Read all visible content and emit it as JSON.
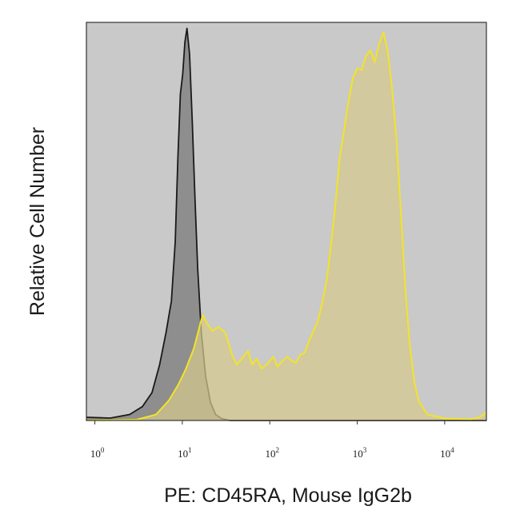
{
  "chart_data": {
    "type": "area",
    "xlabel": "PE: CD45RA, Mouse IgG2b",
    "ylabel": "Relative Cell Number",
    "x_scale": "log",
    "xlim": [
      0.8,
      30000
    ],
    "ylim": [
      0,
      100
    ],
    "x_ticks": [
      {
        "base": "10",
        "exp": "0",
        "value": 1
      },
      {
        "base": "10",
        "exp": "1",
        "value": 10
      },
      {
        "base": "10",
        "exp": "2",
        "value": 100
      },
      {
        "base": "10",
        "exp": "3",
        "value": 1000
      },
      {
        "base": "10",
        "exp": "4",
        "value": 10000
      }
    ],
    "background_color": "#c9c9c9",
    "series": [
      {
        "color": "#1a1a1a",
        "fill": "#8e8e8e",
        "points": [
          [
            0.8,
            0.8
          ],
          [
            1.5,
            0.6
          ],
          [
            2.5,
            1.5
          ],
          [
            3.5,
            3.5
          ],
          [
            4.5,
            7
          ],
          [
            5.5,
            14
          ],
          [
            6.5,
            22
          ],
          [
            7.5,
            30
          ],
          [
            8.3,
            45
          ],
          [
            8.9,
            66
          ],
          [
            9.5,
            82
          ],
          [
            10.1,
            87
          ],
          [
            10.7,
            95
          ],
          [
            11.3,
            98.5
          ],
          [
            12.1,
            92
          ],
          [
            13,
            75
          ],
          [
            14,
            55
          ],
          [
            15,
            38
          ],
          [
            16.5,
            22
          ],
          [
            18.5,
            11
          ],
          [
            21,
            4.5
          ],
          [
            24,
            1.5
          ],
          [
            28,
            0.5
          ],
          [
            35,
            0
          ],
          [
            30000,
            0
          ]
        ]
      },
      {
        "color": "#f2e428",
        "fill": "#d6c98d",
        "points": [
          [
            0.8,
            0
          ],
          [
            3,
            0.2
          ],
          [
            5,
            1.5
          ],
          [
            7,
            5
          ],
          [
            9,
            9
          ],
          [
            11,
            13
          ],
          [
            13.5,
            18
          ],
          [
            15.5,
            23
          ],
          [
            17,
            26.5
          ],
          [
            19,
            24.5
          ],
          [
            22,
            22.5
          ],
          [
            26,
            23.5
          ],
          [
            31,
            22
          ],
          [
            37,
            16.5
          ],
          [
            42,
            14
          ],
          [
            48,
            15.5
          ],
          [
            56,
            17.5
          ],
          [
            63,
            14
          ],
          [
            71,
            15.5
          ],
          [
            81,
            13
          ],
          [
            92,
            14
          ],
          [
            110,
            16
          ],
          [
            122,
            13.5
          ],
          [
            141,
            15
          ],
          [
            158,
            16
          ],
          [
            178,
            15
          ],
          [
            200,
            14.5
          ],
          [
            224,
            16.5
          ],
          [
            251,
            17
          ],
          [
            282,
            20
          ],
          [
            316,
            22.5
          ],
          [
            355,
            25
          ],
          [
            398,
            29.5
          ],
          [
            447,
            35
          ],
          [
            501,
            44
          ],
          [
            562,
            54
          ],
          [
            631,
            66
          ],
          [
            708,
            73
          ],
          [
            794,
            80
          ],
          [
            891,
            86
          ],
          [
            1000,
            88.5
          ],
          [
            1122,
            88
          ],
          [
            1259,
            91.5
          ],
          [
            1413,
            93
          ],
          [
            1585,
            90
          ],
          [
            1778,
            94.5
          ],
          [
            2000,
            97.5
          ],
          [
            2239,
            92.5
          ],
          [
            2512,
            83
          ],
          [
            2818,
            70
          ],
          [
            3162,
            52
          ],
          [
            3548,
            33
          ],
          [
            3981,
            19
          ],
          [
            4467,
            10
          ],
          [
            5012,
            5
          ],
          [
            6310,
            1.5
          ],
          [
            10000,
            0.5
          ],
          [
            20000,
            0.3
          ],
          [
            25000,
            0.8
          ],
          [
            30000,
            2
          ]
        ]
      }
    ]
  }
}
